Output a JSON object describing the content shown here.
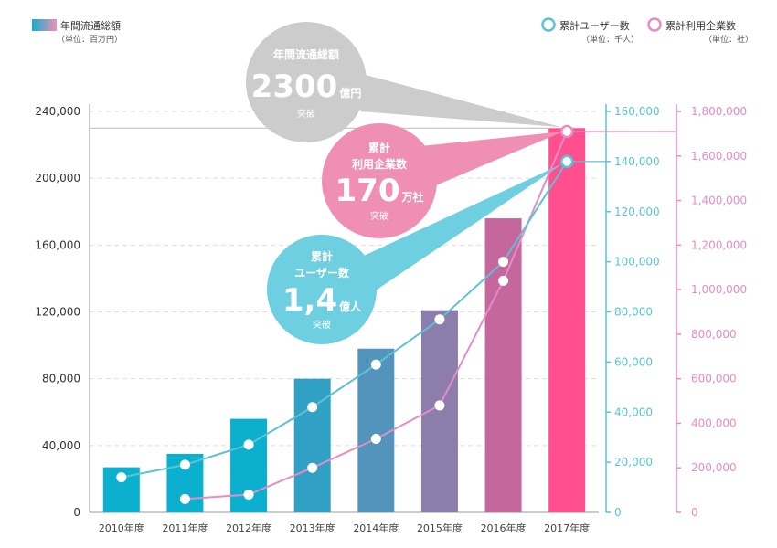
{
  "chart_data": {
    "type": "bar",
    "categories": [
      "2010年度",
      "2011年度",
      "2012年度",
      "2013年度",
      "2014年度",
      "2015年度",
      "2016年度",
      "2017年度"
    ],
    "series": [
      {
        "name": "年間流通総額",
        "unit": "（単位：百万円）",
        "type": "bar",
        "axis": "left",
        "values": [
          27000,
          35000,
          56000,
          80000,
          98000,
          121000,
          176000,
          230000
        ]
      },
      {
        "name": "累計ユーザー数",
        "unit": "（単位：千人）",
        "type": "line",
        "axis": "right1",
        "color": "#5bc3d2",
        "values": [
          14000,
          19000,
          27000,
          42000,
          59000,
          77000,
          100000,
          140000
        ]
      },
      {
        "name": "累計利用企業数",
        "unit": "（単位：社）",
        "type": "line",
        "axis": "right2",
        "color": "#e68cc6",
        "values": [
          null,
          60000,
          80000,
          200000,
          330000,
          480000,
          1040000,
          1710000
        ]
      }
    ],
    "axes": {
      "left": {
        "min": 0,
        "max": 240000,
        "ticks": [
          "0",
          "40,000",
          "80,000",
          "120,000",
          "160,000",
          "200,000",
          "240,000"
        ]
      },
      "right1": {
        "min": 0,
        "max": 160000,
        "ticks": [
          "0",
          "20,000",
          "40,000",
          "60,000",
          "80,000",
          "100,000",
          "120,000",
          "140,000",
          "160,000"
        ]
      },
      "right2": {
        "min": 0,
        "max": 1800000,
        "ticks": [
          "0",
          "200,000",
          "400,000",
          "600,000",
          "800,000",
          "1,000,000",
          "1,200,000",
          "1,400,000",
          "1,600,000",
          "1,800,000"
        ]
      }
    },
    "grid": true,
    "legend_position": "top",
    "colors": {
      "bar_start": "#0bb0cf",
      "bar_end": "#ff4f8e",
      "cyan": "#5bc3d2",
      "pink": "#e68cc6",
      "gray_bubble": "#cccccc",
      "pink_bubble": "#f08fb4",
      "cyan_bubble": "#6dcfe0"
    }
  },
  "callouts": {
    "total": {
      "line1": "年間流通総額",
      "value": "2300",
      "unit": "億円",
      "suffix": "突破"
    },
    "companies": {
      "line1": "累計",
      "line2": "利用企業数",
      "value": "170",
      "unit": "万社",
      "suffix": "突破"
    },
    "users": {
      "line1": "累計",
      "line2": "ユーザー数",
      "value": "1,4",
      "unit": "億人",
      "suffix": "突破"
    }
  }
}
